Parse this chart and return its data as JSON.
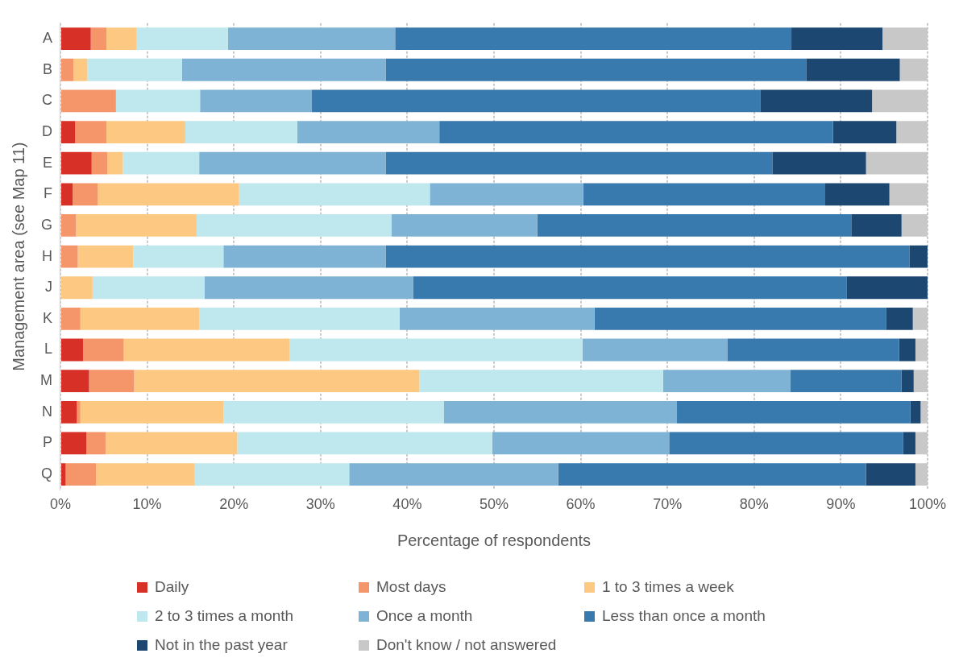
{
  "chart_data": {
    "type": "bar",
    "orientation": "horizontal",
    "stacked": true,
    "ylabel": "Management area (see Map 11)",
    "xlabel": "Percentage of respondents",
    "categories": [
      "A",
      "B",
      "C",
      "D",
      "E",
      "F",
      "G",
      "H",
      "J",
      "K",
      "L",
      "M",
      "N",
      "P",
      "Q"
    ],
    "series": [
      {
        "name": "Daily",
        "color": "#d73027",
        "values": [
          3.5,
          0,
          0,
          1.7,
          3.6,
          1.4,
          0,
          0,
          0,
          0,
          2.6,
          3.3,
          1.9,
          3.0,
          0.6
        ]
      },
      {
        "name": "Most days",
        "color": "#f4956a",
        "values": [
          1.8,
          1.5,
          6.4,
          3.6,
          1.8,
          2.9,
          1.8,
          2.0,
          0,
          2.3,
          4.7,
          5.2,
          0.4,
          2.2,
          3.5
        ]
      },
      {
        "name": "1 to 3 times a week",
        "color": "#fdc982",
        "values": [
          3.5,
          1.6,
          0,
          9.1,
          1.8,
          16.3,
          13.9,
          6.4,
          3.7,
          13.7,
          19.1,
          32.9,
          16.5,
          15.2,
          11.4
        ]
      },
      {
        "name": "2 to 3 times a month",
        "color": "#bee8ed",
        "values": [
          10.5,
          10.9,
          9.7,
          12.9,
          8.8,
          22.0,
          22.5,
          10.4,
          12.9,
          23.1,
          33.8,
          28.1,
          25.4,
          29.4,
          17.8
        ]
      },
      {
        "name": "Once a month",
        "color": "#7fb3d5",
        "values": [
          19.3,
          23.5,
          12.9,
          16.4,
          21.5,
          17.7,
          16.8,
          18.7,
          24.1,
          22.5,
          16.7,
          14.7,
          26.9,
          20.4,
          24.1
        ]
      },
      {
        "name": "Less than once a month",
        "color": "#3879ae",
        "values": [
          45.7,
          48.5,
          51.7,
          45.4,
          44.6,
          27.9,
          36.2,
          60.4,
          50.0,
          33.6,
          19.8,
          12.8,
          26.9,
          27.0,
          35.5
        ]
      },
      {
        "name": "Not in the past year",
        "color": "#1c4770",
        "values": [
          10.5,
          10.8,
          12.9,
          7.3,
          10.8,
          7.4,
          5.8,
          2.1,
          9.3,
          3.1,
          1.9,
          1.4,
          1.2,
          1.4,
          5.7
        ]
      },
      {
        "name": "Don't know / not answered",
        "color": "#c8c8c8",
        "values": [
          5.2,
          3.2,
          6.4,
          3.6,
          7.1,
          4.4,
          3.0,
          0,
          0,
          1.7,
          1.4,
          1.6,
          0.8,
          1.4,
          1.4
        ]
      }
    ],
    "xlim": [
      0,
      100
    ],
    "xticks": [
      {
        "value": 0,
        "label": "0%"
      },
      {
        "value": 10,
        "label": "10%"
      },
      {
        "value": 20,
        "label": "20%"
      },
      {
        "value": 30,
        "label": "30%"
      },
      {
        "value": 40,
        "label": "40%"
      },
      {
        "value": 50,
        "label": "50%"
      },
      {
        "value": 60,
        "label": "60%"
      },
      {
        "value": 70,
        "label": "70%"
      },
      {
        "value": 80,
        "label": "80%"
      },
      {
        "value": 90,
        "label": "90%"
      },
      {
        "value": 100,
        "label": "100%"
      }
    ],
    "grid": "x",
    "legend": "bottom"
  }
}
